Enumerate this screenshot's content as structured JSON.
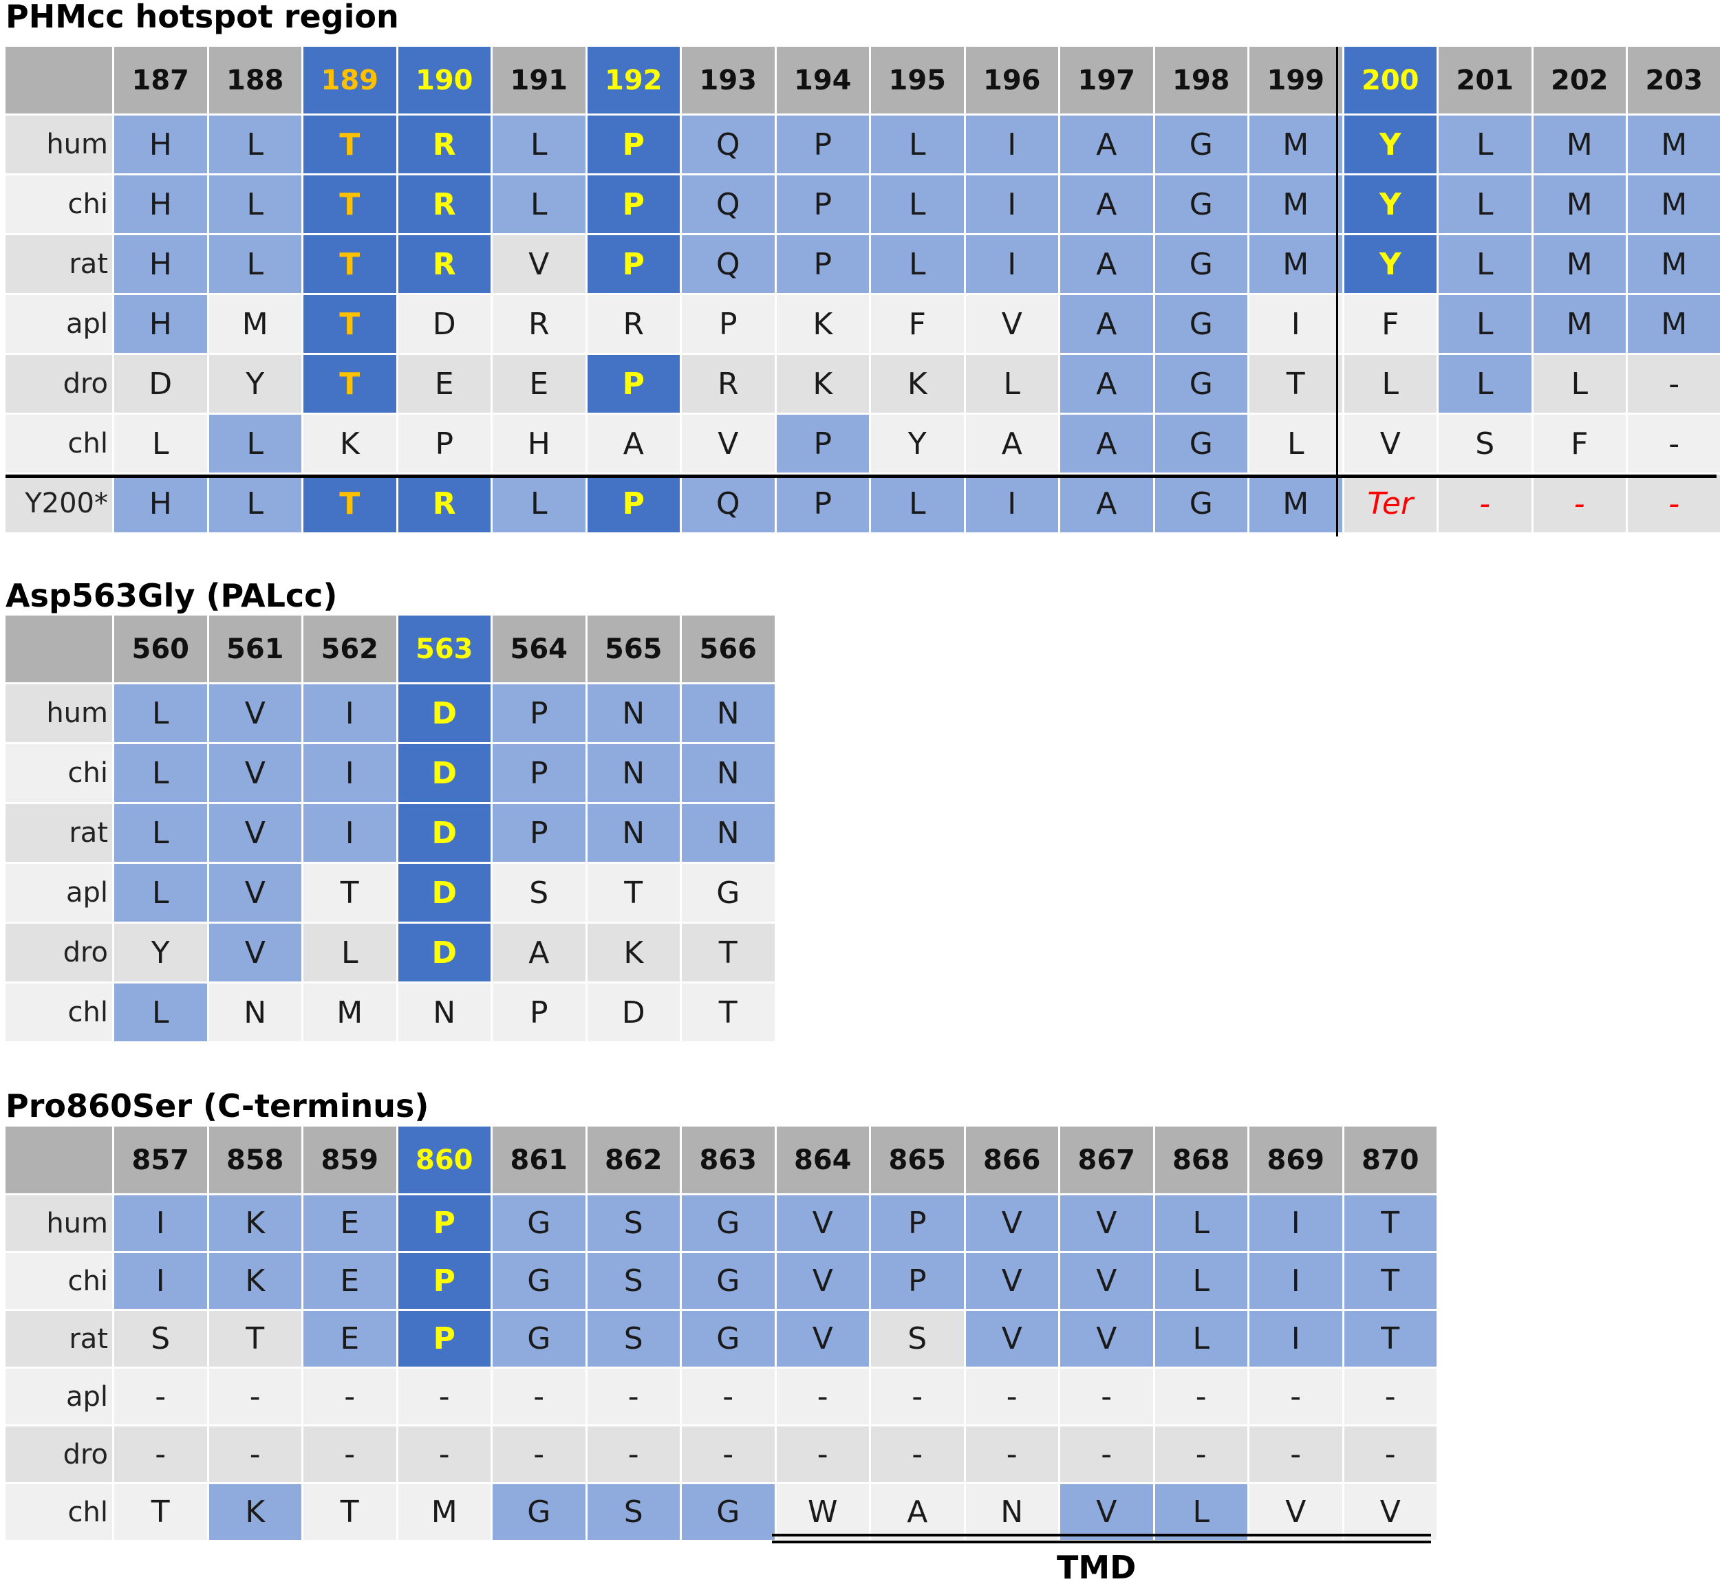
{
  "sections": [
    {
      "title": "PHMcc hotspot region",
      "positions": [
        "187",
        "188",
        "189",
        "190",
        "191",
        "192",
        "193",
        "194",
        "195",
        "196",
        "197",
        "198",
        "199",
        "200",
        "201",
        "202",
        "203"
      ],
      "header_styles": [
        "",
        "",
        "o",
        "d",
        "",
        "d",
        "",
        "",
        "",
        "",
        "",
        "",
        "",
        "d",
        "",
        "",
        ""
      ],
      "rows": [
        {
          "label": "hum",
          "cells": [
            "H",
            "L",
            "T",
            "R",
            "L",
            "P",
            "Q",
            "P",
            "L",
            "I",
            "A",
            "G",
            "M",
            "Y",
            "L",
            "M",
            "M"
          ],
          "styles": [
            "l",
            "l",
            "o",
            "d",
            "l",
            "d",
            "l",
            "l",
            "l",
            "l",
            "l",
            "l",
            "l",
            "d",
            "l",
            "l",
            "l"
          ]
        },
        {
          "label": "chi",
          "cells": [
            "H",
            "L",
            "T",
            "R",
            "L",
            "P",
            "Q",
            "P",
            "L",
            "I",
            "A",
            "G",
            "M",
            "Y",
            "L",
            "M",
            "M"
          ],
          "styles": [
            "l",
            "l",
            "o",
            "d",
            "l",
            "d",
            "l",
            "l",
            "l",
            "l",
            "l",
            "l",
            "l",
            "d",
            "l",
            "l",
            "l"
          ]
        },
        {
          "label": "rat",
          "cells": [
            "H",
            "L",
            "T",
            "R",
            "V",
            "P",
            "Q",
            "P",
            "L",
            "I",
            "A",
            "G",
            "M",
            "Y",
            "L",
            "M",
            "M"
          ],
          "styles": [
            "l",
            "l",
            "o",
            "d",
            "",
            "d",
            "l",
            "l",
            "l",
            "l",
            "l",
            "l",
            "l",
            "d",
            "l",
            "l",
            "l"
          ]
        },
        {
          "label": "apl",
          "cells": [
            "H",
            "M",
            "T",
            "D",
            "R",
            "R",
            "P",
            "K",
            "F",
            "V",
            "A",
            "G",
            "I",
            "F",
            "L",
            "M",
            "M"
          ],
          "styles": [
            "l",
            "",
            "o",
            "",
            "",
            "",
            "",
            "",
            "",
            "",
            "l",
            "l",
            "",
            "",
            "l",
            "l",
            "l"
          ]
        },
        {
          "label": "dro",
          "cells": [
            "D",
            "Y",
            "T",
            "E",
            "E",
            "P",
            "R",
            "K",
            "K",
            "L",
            "A",
            "G",
            "T",
            "L",
            "L",
            "L",
            "-"
          ],
          "styles": [
            "",
            "",
            "o",
            "",
            "",
            "d",
            "",
            "",
            "",
            "",
            "l",
            "l",
            "",
            "",
            "l",
            "",
            ""
          ]
        },
        {
          "label": "chl",
          "cells": [
            "L",
            "L",
            "K",
            "P",
            "H",
            "A",
            "V",
            "P",
            "Y",
            "A",
            "A",
            "G",
            "L",
            "V",
            "S",
            "F",
            "-"
          ],
          "styles": [
            "",
            "l",
            "",
            "",
            "",
            "",
            "",
            "l",
            "",
            "",
            "l",
            "l",
            "",
            "",
            "",
            "",
            ""
          ]
        },
        {
          "label": "Y200*",
          "cells": [
            "H",
            "L",
            "T",
            "R",
            "L",
            "P",
            "Q",
            "P",
            "L",
            "I",
            "A",
            "G",
            "M",
            "Ter",
            "-",
            "-",
            "-"
          ],
          "styles": [
            "l",
            "l",
            "o",
            "d",
            "l",
            "d",
            "l",
            "l",
            "l",
            "l",
            "l",
            "l",
            "l",
            "r",
            "r",
            "r",
            "r"
          ]
        }
      ]
    },
    {
      "title": "Asp563Gly (PALcc)",
      "positions": [
        "560",
        "561",
        "562",
        "563",
        "564",
        "565",
        "566"
      ],
      "header_styles": [
        "",
        "",
        "",
        "d",
        "",
        "",
        ""
      ],
      "rows": [
        {
          "label": "hum",
          "cells": [
            "L",
            "V",
            "I",
            "D",
            "P",
            "N",
            "N"
          ],
          "styles": [
            "l",
            "l",
            "l",
            "d",
            "l",
            "l",
            "l"
          ]
        },
        {
          "label": "chi",
          "cells": [
            "L",
            "V",
            "I",
            "D",
            "P",
            "N",
            "N"
          ],
          "styles": [
            "l",
            "l",
            "l",
            "d",
            "l",
            "l",
            "l"
          ]
        },
        {
          "label": "rat",
          "cells": [
            "L",
            "V",
            "I",
            "D",
            "P",
            "N",
            "N"
          ],
          "styles": [
            "l",
            "l",
            "l",
            "d",
            "l",
            "l",
            "l"
          ]
        },
        {
          "label": "apl",
          "cells": [
            "L",
            "V",
            "T",
            "D",
            "S",
            "T",
            "G"
          ],
          "styles": [
            "l",
            "l",
            "",
            "d",
            "",
            "",
            ""
          ]
        },
        {
          "label": "dro",
          "cells": [
            "Y",
            "V",
            "L",
            "D",
            "A",
            "K",
            "T"
          ],
          "styles": [
            "",
            "l",
            "",
            "d",
            "",
            "",
            ""
          ]
        },
        {
          "label": "chl",
          "cells": [
            "L",
            "N",
            "M",
            "N",
            "P",
            "D",
            "T"
          ],
          "styles": [
            "l",
            "",
            "",
            "",
            "",
            "",
            ""
          ]
        }
      ]
    },
    {
      "title": "Pro860Ser (C-terminus)",
      "positions": [
        "857",
        "858",
        "859",
        "860",
        "861",
        "862",
        "863",
        "864",
        "865",
        "866",
        "867",
        "868",
        "869",
        "870"
      ],
      "header_styles": [
        "",
        "",
        "",
        "d",
        "",
        "",
        "",
        "",
        "",
        "",
        "",
        "",
        "",
        ""
      ],
      "rows": [
        {
          "label": "hum",
          "cells": [
            "I",
            "K",
            "E",
            "P",
            "G",
            "S",
            "G",
            "V",
            "P",
            "V",
            "V",
            "L",
            "I",
            "T"
          ],
          "styles": [
            "l",
            "l",
            "l",
            "d",
            "l",
            "l",
            "l",
            "l",
            "l",
            "l",
            "l",
            "l",
            "l",
            "l"
          ]
        },
        {
          "label": "chi",
          "cells": [
            "I",
            "K",
            "E",
            "P",
            "G",
            "S",
            "G",
            "V",
            "P",
            "V",
            "V",
            "L",
            "I",
            "T"
          ],
          "styles": [
            "l",
            "l",
            "l",
            "d",
            "l",
            "l",
            "l",
            "l",
            "l",
            "l",
            "l",
            "l",
            "l",
            "l"
          ]
        },
        {
          "label": "rat",
          "cells": [
            "S",
            "T",
            "E",
            "P",
            "G",
            "S",
            "G",
            "V",
            "S",
            "V",
            "V",
            "L",
            "I",
            "T"
          ],
          "styles": [
            "",
            "",
            "l",
            "d",
            "l",
            "l",
            "l",
            "l",
            "",
            "l",
            "l",
            "l",
            "l",
            "l"
          ]
        },
        {
          "label": "apl",
          "cells": [
            "-",
            "-",
            "-",
            "-",
            "-",
            "-",
            "-",
            "-",
            "-",
            "-",
            "-",
            "-",
            "-",
            "-"
          ],
          "styles": [
            "",
            "",
            "",
            "",
            "",
            "",
            "",
            "",
            "",
            "",
            "",
            "",
            "",
            ""
          ]
        },
        {
          "label": "dro",
          "cells": [
            "-",
            "-",
            "-",
            "-",
            "-",
            "-",
            "-",
            "-",
            "-",
            "-",
            "-",
            "-",
            "-",
            "-"
          ],
          "styles": [
            "",
            "",
            "",
            "",
            "",
            "",
            "",
            "",
            "",
            "",
            "",
            "",
            "",
            ""
          ]
        },
        {
          "label": "chl",
          "cells": [
            "T",
            "K",
            "T",
            "M",
            "G",
            "S",
            "G",
            "W",
            "A",
            "N",
            "V",
            "L",
            "V",
            "V"
          ],
          "styles": [
            "",
            "l",
            "",
            "",
            "l",
            "l",
            "l",
            "",
            "",
            "",
            "l",
            "l",
            "",
            ""
          ]
        }
      ],
      "tmd_label": "TMD"
    }
  ],
  "colors": {
    "header_gray": "#b1b1b1",
    "light_blue": "#8faadc",
    "dark_blue": "#4472c4",
    "highlight_yellow": "#ffff00",
    "highlight_orange": "#ffc000",
    "stop_red": "#ff0000"
  }
}
